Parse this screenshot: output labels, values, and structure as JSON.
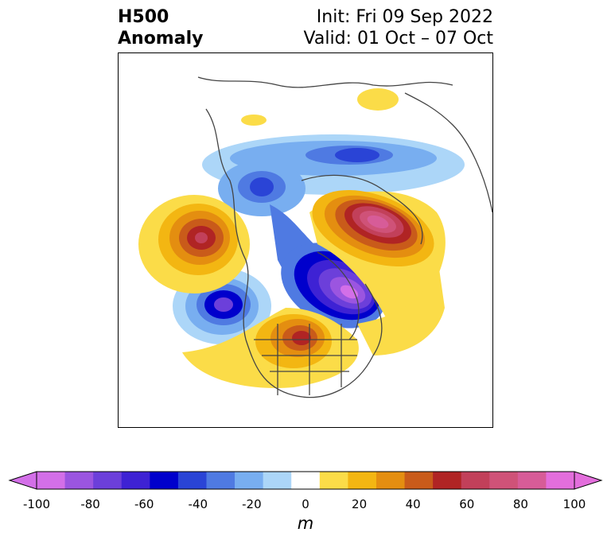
{
  "header": {
    "field_line1": "H500",
    "field_line2": "Anomaly",
    "init_text": "Init: Fri 09 Sep 2022",
    "valid_text": "Valid: 01 Oct – 07 Oct"
  },
  "colorbar": {
    "unit": "m",
    "min": -100,
    "max": 100,
    "tick_labels": [
      "-100",
      "-80",
      "-60",
      "-40",
      "-20",
      "0",
      "20",
      "40",
      "60",
      "80",
      "100"
    ],
    "tick_values": [
      -100,
      -80,
      -60,
      -40,
      -20,
      0,
      20,
      40,
      60,
      80,
      100
    ],
    "colors": [
      "#d36fe8",
      "#9b55e0",
      "#6c3fda",
      "#3e22d4",
      "#0000cc",
      "#2a44d6",
      "#4f7ae2",
      "#78aef0",
      "#acd6f8",
      "#ffffff",
      "#fbdc48",
      "#f3b612",
      "#e48e10",
      "#c95b1a",
      "#b02424",
      "#c2405a",
      "#cf5278",
      "#d75c98",
      "#e36edc"
    ],
    "extend": "both"
  },
  "map": {
    "projection": "polar-stereographic",
    "region": "Northern Hemisphere / North America"
  }
}
